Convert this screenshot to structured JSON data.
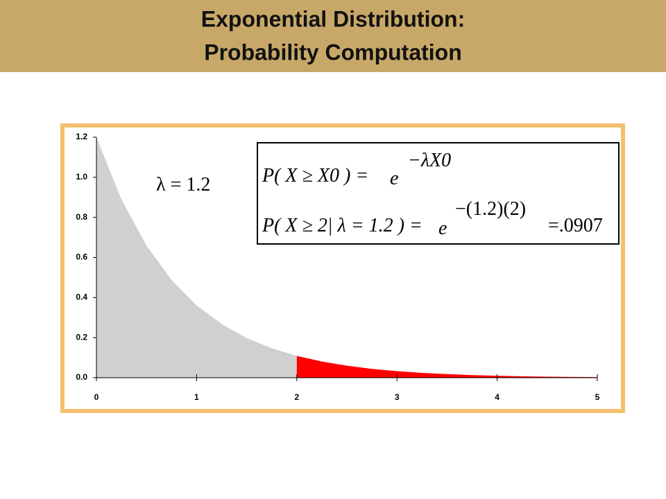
{
  "slide": {
    "title_lines": [
      "Exponential Distribution:",
      "Probability Computation"
    ]
  },
  "annotations": {
    "lambda": "λ = 1.2",
    "formula_general": "P( X ≥ X0 ) =",
    "base_general": "e",
    "exponent_general": "−λX0",
    "formula_specific": "P( X ≥ 2| λ = 1.2 ) =",
    "base_specific": "e",
    "exponent_specific": "−(1.2)(2)",
    "result": "=.0907"
  },
  "chart_data": {
    "type": "area",
    "x": [
      0,
      0.25,
      0.5,
      0.75,
      1,
      1.25,
      1.5,
      1.75,
      2,
      2.25,
      2.5,
      2.75,
      3,
      3.25,
      3.5,
      3.75,
      4,
      4.25,
      4.5,
      4.75,
      5
    ],
    "values": [
      1.2,
      0.889,
      0.659,
      0.488,
      0.361,
      0.268,
      0.198,
      0.147,
      0.109,
      0.081,
      0.06,
      0.044,
      0.033,
      0.024,
      0.018,
      0.013,
      0.01,
      0.007,
      0.005,
      0.004,
      0.003
    ],
    "color": "#d0d0d0",
    "highlight": {
      "from": 2,
      "color": "#ff0000"
    },
    "xlim": [
      0,
      5
    ],
    "xticks": [
      0,
      1,
      2,
      3,
      4,
      5
    ],
    "ylim": [
      0,
      1.2
    ],
    "yticks": [
      {
        "value": 0,
        "label": "0.0"
      },
      0.2,
      0.4,
      0.6,
      0.8,
      {
        "value": 1,
        "label": "1.0"
      },
      1.2
    ]
  }
}
